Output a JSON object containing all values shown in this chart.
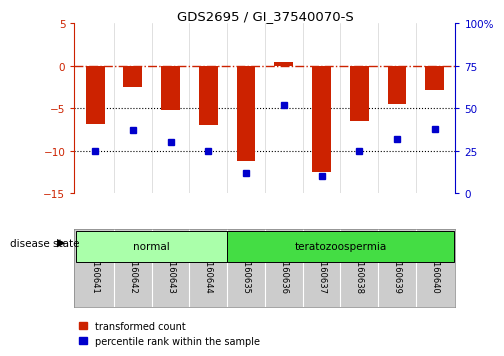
{
  "title": "GDS2695 / GI_37540070-S",
  "samples": [
    "GSM160641",
    "GSM160642",
    "GSM160643",
    "GSM160644",
    "GSM160635",
    "GSM160636",
    "GSM160637",
    "GSM160638",
    "GSM160639",
    "GSM160640"
  ],
  "transformed_counts": [
    -6.8,
    -2.5,
    -5.2,
    -7.0,
    -11.2,
    0.5,
    -12.5,
    -6.5,
    -4.5,
    -2.8
  ],
  "percentile_ranks": [
    25,
    37,
    30,
    25,
    12,
    52,
    10,
    25,
    32,
    38
  ],
  "disease_groups": [
    {
      "label": "normal",
      "start": 0,
      "end": 4,
      "color": "#aaffaa"
    },
    {
      "label": "teratozoospermia",
      "start": 4,
      "end": 10,
      "color": "#44dd44"
    }
  ],
  "ylim_left": [
    -15,
    5
  ],
  "ylim_right": [
    0,
    100
  ],
  "yticks_left": [
    -15,
    -10,
    -5,
    0,
    5
  ],
  "yticks_right": [
    0,
    25,
    50,
    75,
    100
  ],
  "bar_color": "#cc2200",
  "dot_color": "#0000cc",
  "dotted_lines": [
    -5,
    -10
  ],
  "bg_color": "#ffffff",
  "bar_width": 0.5,
  "label_bg": "#cccccc",
  "legend_items": [
    "transformed count",
    "percentile rank within the sample"
  ],
  "right_tick_labels": [
    "0",
    "25",
    "50",
    "75",
    "100%"
  ]
}
